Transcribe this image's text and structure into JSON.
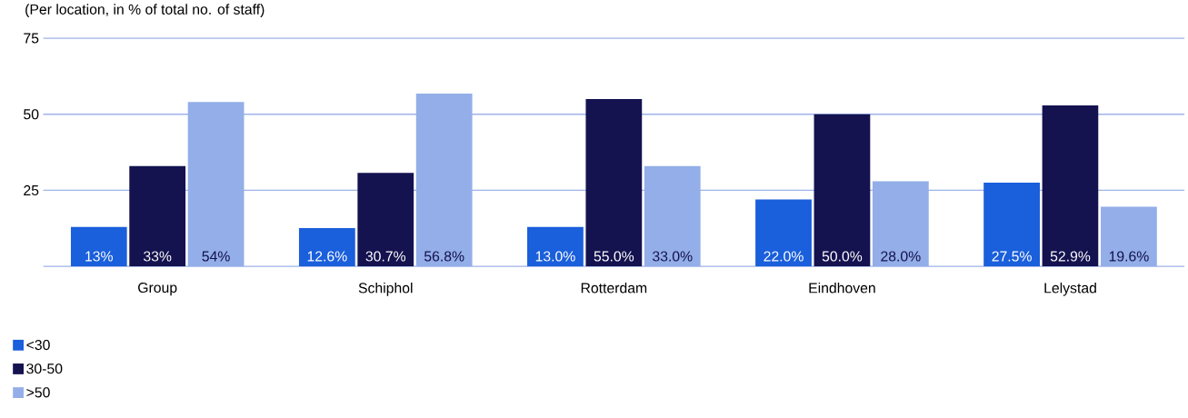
{
  "chart_data": {
    "type": "bar",
    "title": "(Per location, in % of total no. of staff)",
    "categories": [
      "Group",
      "Schiphol",
      "Rotterdam",
      "Eindhoven",
      "Lelystad"
    ],
    "series": [
      {
        "name": "<30",
        "color": "#1a5fdb",
        "values": [
          13,
          12.6,
          13.0,
          22.0,
          27.5
        ],
        "value_labels": [
          "13%",
          "12.6%",
          "13.0%",
          "22.0%",
          "27.5%"
        ]
      },
      {
        "name": "30-50",
        "color": "#14124f",
        "values": [
          33,
          30.7,
          55.0,
          50.0,
          52.9
        ],
        "value_labels": [
          "33%",
          "30.7%",
          "55.0%",
          "50.0%",
          "52.9%"
        ]
      },
      {
        "name": ">50",
        "color": "#93aee8",
        "values": [
          54,
          56.8,
          33.0,
          28.0,
          19.6
        ],
        "value_labels": [
          "54%",
          "56.8%",
          "33.0%",
          "28.0%",
          "19.6%"
        ]
      }
    ],
    "ylim": [
      0,
      75
    ],
    "yticks": [
      {
        "value": 0,
        "label": null
      },
      25,
      50,
      75
    ],
    "grid": "y",
    "legend": "bottom left"
  }
}
